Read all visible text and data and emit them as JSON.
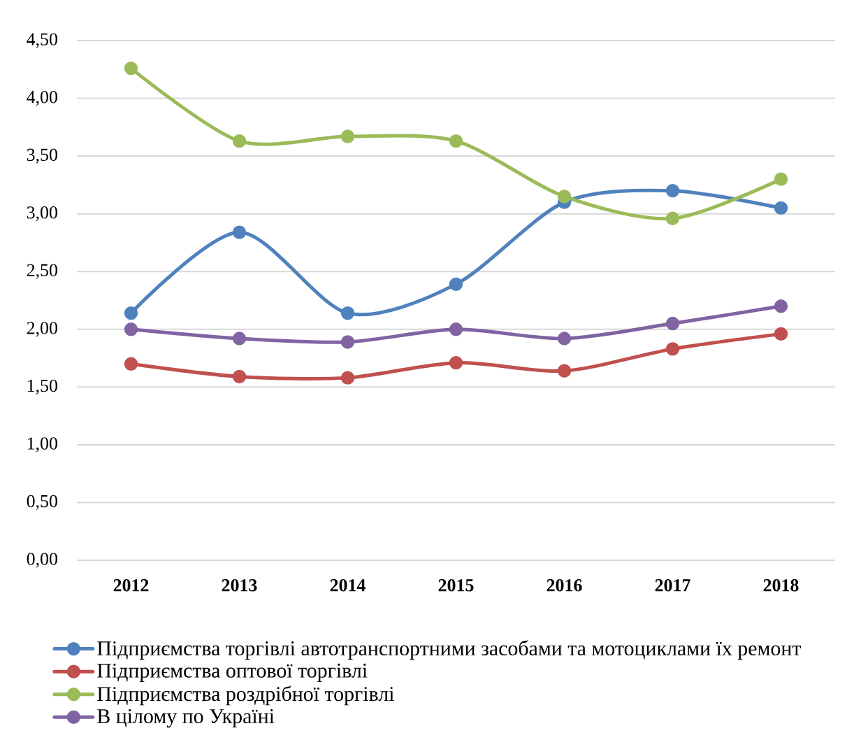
{
  "chart_data": {
    "type": "line",
    "categories": [
      "2012",
      "2013",
      "2014",
      "2015",
      "2016",
      "2017",
      "2018"
    ],
    "series": [
      {
        "name": "Підприємства торгівлі автотранспортними засобами та мотоциклами їх ремонт",
        "color": "#4f81bd",
        "values": [
          2.14,
          2.84,
          2.14,
          2.39,
          3.1,
          3.2,
          3.05
        ]
      },
      {
        "name": "Підприємства оптової торгівлі",
        "color": "#c0504d",
        "values": [
          1.7,
          1.59,
          1.58,
          1.71,
          1.64,
          1.83,
          1.96
        ]
      },
      {
        "name": "Підприємства роздрібної торгівлі",
        "color": "#9bbb59",
        "values": [
          4.26,
          3.63,
          3.67,
          3.63,
          3.15,
          2.96,
          3.3
        ]
      },
      {
        "name": "В цілому по Україні",
        "color": "#8064a2",
        "values": [
          2.0,
          1.92,
          1.89,
          2.0,
          1.92,
          2.05,
          2.2
        ]
      }
    ],
    "ylim": [
      0,
      4.5
    ],
    "yticks": [
      {
        "value": 0,
        "label": "0,00"
      },
      {
        "value": 0.5,
        "label": "0,50"
      },
      {
        "value": 1,
        "label": "1,00"
      },
      {
        "value": 1.5,
        "label": "1,50"
      },
      {
        "value": 2,
        "label": "2,00"
      },
      {
        "value": 2.5,
        "label": "2,50"
      },
      {
        "value": 3,
        "label": "3,00"
      },
      {
        "value": 3.5,
        "label": "3,50"
      },
      {
        "value": 4,
        "label": "4,00"
      },
      {
        "value": 4.5,
        "label": "4,50"
      }
    ],
    "grid": "y",
    "legend": "bottom",
    "marker": "circle",
    "line_style": "solid"
  }
}
